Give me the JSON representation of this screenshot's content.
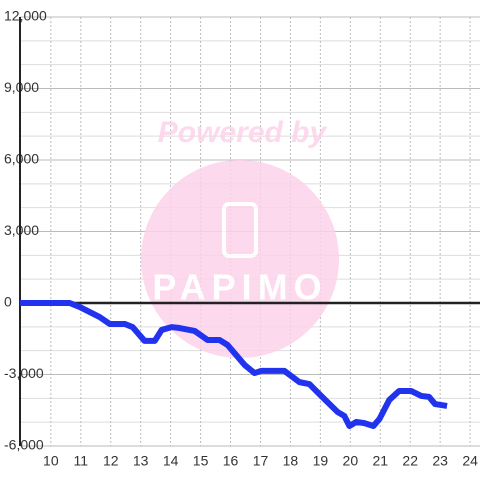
{
  "chart_data": {
    "type": "line",
    "watermark": {
      "line1": "Powered by",
      "line2": "PAPIMO"
    },
    "x": [
      8.97,
      10.63,
      10.97,
      11.63,
      11.97,
      12.47,
      12.73,
      13.13,
      13.47,
      13.7,
      14.03,
      14.3,
      14.8,
      15.23,
      15.63,
      15.9,
      16.47,
      16.8,
      17.03,
      17.8,
      18.3,
      18.63,
      19.03,
      19.57,
      19.8,
      19.97,
      20.2,
      20.47,
      20.77,
      20.97,
      21.3,
      21.63,
      22.03,
      22.37,
      22.63,
      22.83,
      23.23
    ],
    "series": [
      {
        "color": "#2233ee",
        "values": [
          0,
          0,
          -170,
          -590,
          -880,
          -880,
          -1010,
          -1590,
          -1590,
          -1130,
          -1010,
          -1050,
          -1170,
          -1550,
          -1550,
          -1760,
          -2600,
          -2940,
          -2850,
          -2850,
          -3320,
          -3400,
          -3900,
          -4570,
          -4740,
          -5160,
          -4990,
          -5040,
          -5160,
          -4870,
          -4070,
          -3690,
          -3690,
          -3900,
          -3940,
          -4240,
          -4320
        ]
      }
    ],
    "xlim": [
      8.97,
      24.33
    ],
    "xticks": [
      10,
      11,
      12,
      13,
      14,
      15,
      16,
      17,
      18,
      19,
      20,
      21,
      22,
      23,
      24
    ],
    "ylim": [
      -6000,
      12000
    ],
    "yticks": [
      {
        "value": -6000,
        "label": "-6,000"
      },
      {
        "value": -3000,
        "label": "-3,000"
      },
      0,
      {
        "value": 3000,
        "label": "3,000"
      },
      {
        "value": 6000,
        "label": "6,000"
      },
      {
        "value": 9000,
        "label": "9,000"
      },
      {
        "value": 12000,
        "label": "12,000"
      }
    ],
    "minor_ystep": 1000,
    "grid": true
  }
}
